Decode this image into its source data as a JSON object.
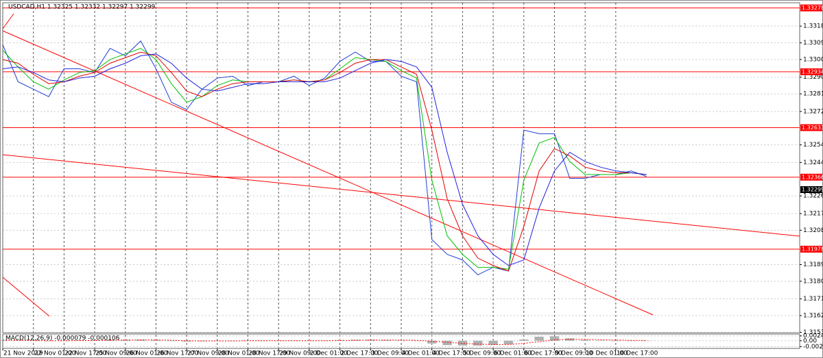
{
  "chart_data": [
    {
      "type": "line",
      "title": "USDCAD,H1 1.32325 1.32332 1.32297 1.32299",
      "xlim": [
        0,
        52
      ],
      "xticks": [
        {
          "value": 0,
          "label": "21 Nov 2019"
        },
        {
          "value": 2,
          "label": "22 Nov 01:00"
        },
        {
          "value": 4,
          "label": "22 Nov 17:00"
        },
        {
          "value": 6,
          "label": "25 Nov 09:00"
        },
        {
          "value": 8,
          "label": "26 Nov 01:00"
        },
        {
          "value": 10,
          "label": "26 Nov 17:00"
        },
        {
          "value": 12,
          "label": "27 Nov 09:00"
        },
        {
          "value": 14,
          "label": "28 Nov 01:00"
        },
        {
          "value": 16,
          "label": "28 Nov 17:00"
        },
        {
          "value": 18,
          "label": "29 Nov 09:00"
        },
        {
          "value": 20,
          "label": "2 Dec 01:00"
        },
        {
          "value": 22,
          "label": "2 Dec 17:00"
        },
        {
          "value": 24,
          "label": "3 Dec 09:00"
        },
        {
          "value": 26,
          "label": "4 Dec 01:00"
        },
        {
          "value": 28,
          "label": "4 Dec 17:00"
        },
        {
          "value": 30,
          "label": "5 Dec 09:00"
        },
        {
          "value": 32,
          "label": "6 Dec 01:00"
        },
        {
          "value": 34,
          "label": "6 Dec 17:00"
        },
        {
          "value": 36,
          "label": "9 Dec 09:00"
        },
        {
          "value": 38,
          "label": "10 Dec 01:00"
        },
        {
          "value": 40,
          "label": "10 Dec 17:00"
        }
      ],
      "ylim": [
        1.31528,
        1.33306
      ],
      "yticks": [
        {
          "value": 1.3318,
          "label": "1.33180"
        },
        {
          "value": 1.3309,
          "label": "1.33090"
        },
        {
          "value": 1.33,
          "label": "1.33000"
        },
        1.32905,
        1.32815,
        {
          "value": 1.3272,
          "label": "1.32720"
        },
        {
          "value": 1.3254,
          "label": "1.32540"
        },
        1.32445,
        1.32265,
        {
          "value": 1.3217,
          "label": "1.32170"
        },
        {
          "value": 1.3208,
          "label": "1.32080"
        },
        1.31895,
        1.31805,
        {
          "value": 1.3171,
          "label": "1.31710"
        },
        {
          "value": 1.3162,
          "label": "1.31620"
        },
        {
          "value": 1.3153,
          "label": "1.31530"
        }
      ],
      "grid": true,
      "series": [
        {
          "color": "#1f3fd6",
          "values": [
            1.3308,
            1.3288,
            1.3284,
            1.328,
            1.3295,
            1.3295,
            1.3293,
            1.3306,
            1.3302,
            1.331,
            1.3295,
            1.3277,
            1.3273,
            1.3284,
            1.329,
            1.3291,
            1.3286,
            1.3288,
            1.3288,
            1.3291,
            1.3286,
            1.329,
            1.3299,
            1.3304,
            1.3299,
            1.3299,
            1.3291,
            1.3288,
            1.3203,
            1.3195,
            1.3192,
            1.3184,
            1.3188,
            1.3186,
            1.3262,
            1.326,
            1.326,
            1.3236,
            1.3236,
            1.3238,
            1.3238,
            1.324,
            1.3237
          ]
        },
        {
          "color": "#00c000",
          "values": [
            1.3305,
            1.3296,
            1.3288,
            1.3284,
            1.3289,
            1.3293,
            1.3294,
            1.33,
            1.3303,
            1.3306,
            1.33,
            1.3287,
            1.3277,
            1.328,
            1.3286,
            1.3289,
            1.3288,
            1.3288,
            1.3288,
            1.3289,
            1.3288,
            1.3289,
            1.3295,
            1.3301,
            1.33,
            1.3299,
            1.3294,
            1.329,
            1.3235,
            1.3205,
            1.3195,
            1.3188,
            1.3188,
            1.3187,
            1.3235,
            1.3255,
            1.3258,
            1.3245,
            1.3238,
            1.3238,
            1.3238,
            1.3239,
            1.3238
          ]
        },
        {
          "color": "#e00000",
          "values": [
            1.33,
            1.3298,
            1.3292,
            1.3287,
            1.3288,
            1.3291,
            1.3293,
            1.3298,
            1.3301,
            1.3304,
            1.3302,
            1.3293,
            1.3283,
            1.328,
            1.3284,
            1.3287,
            1.3288,
            1.3288,
            1.3288,
            1.3289,
            1.3288,
            1.3289,
            1.3293,
            1.3298,
            1.33,
            1.33,
            1.3296,
            1.3292,
            1.3262,
            1.3225,
            1.3205,
            1.3193,
            1.3189,
            1.3186,
            1.321,
            1.324,
            1.3252,
            1.3248,
            1.3242,
            1.324,
            1.3239,
            1.3239,
            1.3238
          ]
        },
        {
          "color": "#2020e0",
          "values": [
            1.3295,
            1.3296,
            1.3293,
            1.3289,
            1.3288,
            1.329,
            1.3291,
            1.3295,
            1.3298,
            1.3302,
            1.3303,
            1.3298,
            1.329,
            1.3284,
            1.3283,
            1.3285,
            1.3287,
            1.3287,
            1.3288,
            1.3288,
            1.3288,
            1.3288,
            1.329,
            1.3294,
            1.3298,
            1.33,
            1.3299,
            1.3296,
            1.3285,
            1.325,
            1.3222,
            1.3205,
            1.3195,
            1.3189,
            1.3192,
            1.322,
            1.324,
            1.325,
            1.3245,
            1.3242,
            1.324,
            1.3239,
            1.3238
          ]
        }
      ],
      "levels": {
        "color": "#ff0000",
        "values": [
          1.33278,
          1.32934,
          1.32633,
          1.32366,
          1.31978
        ]
      },
      "last_price": 1.32299
    },
    {
      "type": "bar",
      "title": "MACD(12,26,9) -0.000079 -0.000106",
      "xlim": [
        0,
        52
      ],
      "ylim": [
        -0.0035,
        0.003
      ],
      "yticks": [
        0.00242,
        {
          "value": 0,
          "label": "0.00"
        },
        -0.00294
      ],
      "color": "#b0b0b0",
      "values": [
        0.0003,
        0.0002,
        0,
        -0.0002,
        0,
        0.0002,
        0.0002,
        0.0004,
        0.0005,
        0.0006,
        0.0004,
        -0.0001,
        -0.0004,
        -0.0003,
        -0.0001,
        0,
        0,
        0,
        0,
        0.0001,
        0,
        0.0001,
        0.0003,
        0.0005,
        0.0005,
        0.0004,
        0.0002,
        0,
        -0.0014,
        -0.0022,
        -0.0024,
        -0.0024,
        -0.0021,
        -0.0018,
        0.0006,
        0.002,
        0.0022,
        0.0012,
        0.0004,
        0.0001,
        0,
        0,
        -0.0001
      ],
      "series": [
        {
          "color": "#ff0000",
          "values": [
            0.0002,
            0.0002,
            0.0001,
            0,
            0,
            0.0001,
            0.0001,
            0.0002,
            0.0003,
            0.0004,
            0.0004,
            0.0002,
            0,
            -0.0001,
            -0.0001,
            -0.0001,
            0,
            0,
            0,
            0,
            0,
            0,
            0.0001,
            0.0002,
            0.0003,
            0.0003,
            0.0003,
            0.0002,
            -0.0002,
            -0.0008,
            -0.0013,
            -0.0017,
            -0.0019,
            -0.0019,
            -0.0013,
            -0.0005,
            0.0004,
            0.0008,
            0.0007,
            0.0005,
            0.0003,
            0.0002,
            0.0001
          ]
        }
      ]
    }
  ]
}
